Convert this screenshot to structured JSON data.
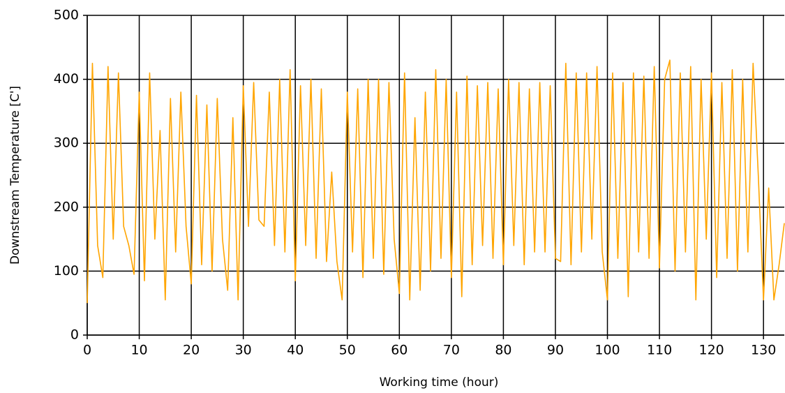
{
  "chart_data": {
    "type": "line",
    "x_label": "Working time (hour)",
    "y_label": "Downstream Temperature [C']",
    "x": [
      0,
      1,
      2,
      3,
      4,
      5,
      6,
      7,
      8,
      9,
      10,
      11,
      12,
      13,
      14,
      15,
      16,
      17,
      18,
      19,
      20,
      21,
      22,
      23,
      24,
      25,
      26,
      27,
      28,
      29,
      30,
      31,
      32,
      33,
      34,
      35,
      36,
      37,
      38,
      39,
      40,
      41,
      42,
      43,
      44,
      45,
      46,
      47,
      48,
      49,
      50,
      51,
      52,
      53,
      54,
      55,
      56,
      57,
      58,
      59,
      60,
      61,
      62,
      63,
      64,
      65,
      66,
      67,
      68,
      69,
      70,
      71,
      72,
      73,
      74,
      75,
      76,
      77,
      78,
      79,
      80,
      81,
      82,
      83,
      84,
      85,
      86,
      87,
      88,
      89,
      90,
      91,
      92,
      93,
      94,
      95,
      96,
      97,
      98,
      99,
      100,
      101,
      102,
      103,
      104,
      105,
      106,
      107,
      108,
      109,
      110,
      111,
      112,
      113,
      114,
      115,
      116,
      117,
      118,
      119,
      120,
      121,
      122,
      123,
      124,
      125,
      126,
      127,
      128,
      129,
      130,
      131,
      132,
      133,
      134
    ],
    "series": [
      {
        "color": "#ffa500",
        "values": [
          50,
          425,
          140,
          90,
          420,
          150,
          410,
          170,
          140,
          95,
          380,
          85,
          410,
          150,
          320,
          55,
          370,
          130,
          380,
          170,
          80,
          375,
          110,
          360,
          100,
          370,
          150,
          70,
          340,
          55,
          390,
          170,
          395,
          180,
          170,
          380,
          140,
          400,
          130,
          415,
          85,
          390,
          140,
          400,
          120,
          385,
          115,
          255,
          115,
          55,
          380,
          130,
          385,
          90,
          400,
          120,
          400,
          95,
          395,
          150,
          65,
          410,
          55,
          340,
          70,
          380,
          100,
          415,
          120,
          400,
          90,
          380,
          60,
          405,
          110,
          390,
          140,
          395,
          120,
          385,
          110,
          400,
          140,
          395,
          110,
          385,
          130,
          395,
          130,
          390,
          120,
          115,
          425,
          110,
          410,
          130,
          410,
          150,
          420,
          130,
          55,
          410,
          120,
          395,
          60,
          410,
          130,
          405,
          120,
          420,
          105,
          400,
          430,
          100,
          410,
          130,
          420,
          55,
          400,
          150,
          410,
          90,
          395,
          120,
          415,
          100,
          400,
          130,
          425,
          250,
          55,
          230,
          55,
          110,
          175
        ]
      }
    ],
    "xlim": [
      0,
      134
    ],
    "ylim": [
      0,
      500
    ],
    "xticks": [
      0,
      10,
      20,
      30,
      40,
      50,
      60,
      70,
      80,
      90,
      100,
      110,
      120,
      130
    ],
    "yticks": [
      0,
      100,
      200,
      300,
      400,
      500
    ],
    "grid": true
  }
}
